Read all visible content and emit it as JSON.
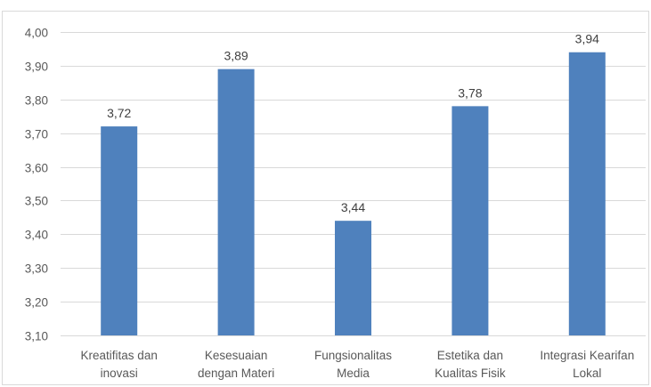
{
  "chart_data": {
    "type": "bar",
    "categories": [
      [
        "Kreatifitas dan",
        "inovasi"
      ],
      [
        "Kesesuaian",
        "dengan Materi"
      ],
      [
        "Fungsionalitas",
        "Media"
      ],
      [
        "Estetika dan",
        "Kualitas Fisik"
      ],
      [
        "Integrasi Kearifan",
        "Lokal"
      ]
    ],
    "values": [
      3.72,
      3.89,
      3.44,
      3.78,
      3.94
    ],
    "data_labels": [
      "3,72",
      "3,89",
      "3,44",
      "3,78",
      "3,94"
    ],
    "ylim": [
      3.1,
      4.0
    ],
    "yticks": [
      3.1,
      3.2,
      3.3,
      3.4,
      3.5,
      3.6,
      3.7,
      3.8,
      3.9,
      4.0
    ],
    "ytick_labels": [
      "3,10",
      "3,20",
      "3,30",
      "3,40",
      "3,50",
      "3,60",
      "3,70",
      "3,80",
      "3,90",
      "4,00"
    ],
    "grid": true,
    "bar_color": "#4f81bd",
    "grid_color": "#d9d9d9"
  }
}
